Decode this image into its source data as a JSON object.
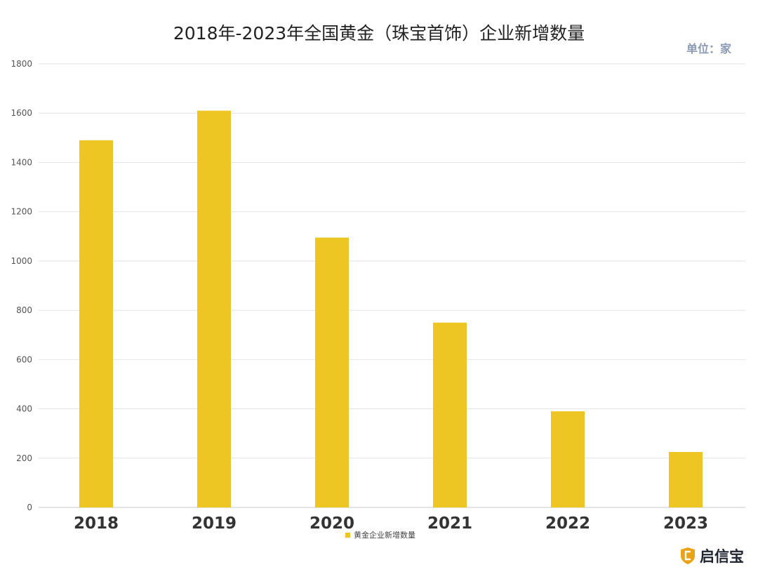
{
  "header": {
    "title": "2018年-2023年全国黄金（珠宝首饰）企业新增数量",
    "unit": "单位：家"
  },
  "watermark": {
    "brand": "启信宝"
  },
  "chart_data": {
    "type": "bar",
    "title": "2018年-2023年全国黄金（珠宝首饰）企业新增数量",
    "xlabel": "",
    "ylabel": "",
    "categories": [
      "2018",
      "2019",
      "2020",
      "2021",
      "2022",
      "2023"
    ],
    "series": [
      {
        "name": "黄金企业新增数量",
        "values": [
          1490,
          1610,
          1095,
          750,
          390,
          225
        ],
        "color": "#eec623"
      }
    ],
    "ylim": [
      0,
      1800
    ],
    "yticks": [
      0,
      200,
      400,
      600,
      800,
      1000,
      1200,
      1400,
      1600,
      1800
    ],
    "grid": true,
    "legend": "bottom-center"
  }
}
